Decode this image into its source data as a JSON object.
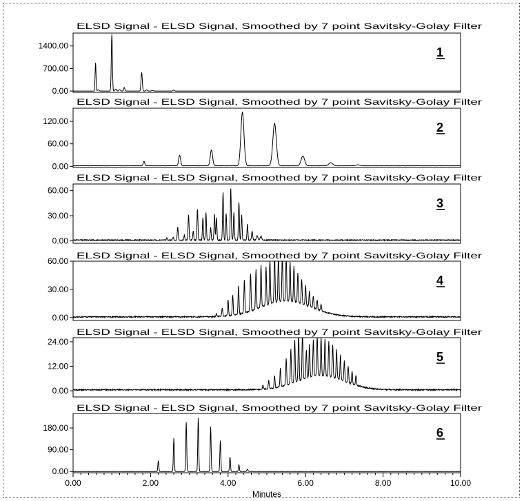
{
  "chart_data": {
    "type": "line",
    "xlabel": "Minutes",
    "xlim": [
      0,
      10
    ],
    "xticks": [
      "0.00",
      "2.00",
      "4.00",
      "6.00",
      "8.00",
      "10.00"
    ],
    "panels": [
      {
        "title": "ELSD Signal - ELSD Signal, Smoothed by 7 point Savitsky-Golay Filter",
        "label": "1",
        "ylim": [
          -40,
          1800
        ],
        "yticks": [
          0,
          700,
          1400
        ],
        "ytick_labels": [
          "0.00",
          "700.00",
          "1400.00"
        ],
        "baseline": 0,
        "noise": 0,
        "peaks": [
          [
            0.58,
            880,
            0.012
          ],
          [
            0.65,
            40,
            0.02
          ],
          [
            1.0,
            1760,
            0.014
          ],
          [
            1.1,
            60,
            0.02
          ],
          [
            1.2,
            45,
            0.02
          ],
          [
            1.32,
            110,
            0.015
          ],
          [
            1.77,
            580,
            0.016
          ],
          [
            1.9,
            35,
            0.02
          ],
          [
            2.05,
            20,
            0.02
          ],
          [
            2.6,
            30,
            0.02
          ]
        ]
      },
      {
        "title": "ELSD Signal - ELSD Signal, Smoothed by 7 point Savitsky-Golay Filter",
        "label": "2",
        "ylim": [
          -3,
          155
        ],
        "yticks": [
          0,
          60,
          120
        ],
        "ytick_labels": [
          "0.00",
          "60.00",
          "120.00"
        ],
        "baseline": 1.5,
        "noise": 0.25,
        "peaks": [
          [
            1.83,
            12,
            0.02
          ],
          [
            2.75,
            28,
            0.025
          ],
          [
            3.57,
            42,
            0.03
          ],
          [
            4.37,
            143,
            0.04
          ],
          [
            5.2,
            113,
            0.045
          ],
          [
            5.93,
            26,
            0.045
          ],
          [
            6.65,
            8,
            0.05
          ],
          [
            7.35,
            2.5,
            0.05
          ]
        ]
      },
      {
        "title": "ELSD Signal - ELSD Signal, Smoothed by 7 point Savitsky-Golay Filter",
        "label": "3",
        "ylim": [
          -3,
          68
        ],
        "yticks": [
          0,
          30,
          60
        ],
        "ytick_labels": [
          "0.00",
          "30.00",
          "60.00"
        ],
        "baseline": 0.8,
        "noise": 0.6,
        "peaks": [
          [
            2.42,
            3,
            0.012
          ],
          [
            2.58,
            4,
            0.012
          ],
          [
            2.7,
            16,
            0.012
          ],
          [
            2.87,
            6,
            0.012
          ],
          [
            2.98,
            31,
            0.012
          ],
          [
            3.1,
            11,
            0.012
          ],
          [
            3.21,
            38,
            0.012
          ],
          [
            3.35,
            27,
            0.012
          ],
          [
            3.43,
            33,
            0.012
          ],
          [
            3.55,
            15,
            0.012
          ],
          [
            3.65,
            31,
            0.012
          ],
          [
            3.7,
            27,
            0.012
          ],
          [
            3.87,
            58,
            0.012
          ],
          [
            3.95,
            32,
            0.012
          ],
          [
            4.07,
            62,
            0.012
          ],
          [
            4.15,
            33,
            0.012
          ],
          [
            4.28,
            46,
            0.012
          ],
          [
            4.35,
            30,
            0.012
          ],
          [
            4.5,
            19,
            0.012
          ],
          [
            4.62,
            10,
            0.015
          ],
          [
            4.75,
            5,
            0.02
          ],
          [
            4.85,
            4,
            0.02
          ]
        ]
      },
      {
        "title": "ELSD Signal - ELSD Signal, Smoothed by 7 point Savitsky-Golay Filter",
        "label": "4",
        "ylim": [
          -3,
          60
        ],
        "yticks": [
          0,
          30,
          60
        ],
        "ytick_labels": [
          "0.00",
          "30.00",
          "60.00"
        ],
        "baseline": 0.8,
        "noise": 0.6,
        "peaks": [
          [
            3.7,
            3,
            0.012
          ],
          [
            3.85,
            9,
            0.012
          ],
          [
            4.0,
            17,
            0.012
          ],
          [
            4.12,
            22,
            0.012
          ],
          [
            4.27,
            30,
            0.012
          ],
          [
            4.42,
            35,
            0.012
          ],
          [
            4.58,
            40,
            0.012
          ],
          [
            4.72,
            42,
            0.012
          ],
          [
            4.85,
            45,
            0.012
          ],
          [
            4.98,
            41,
            0.012
          ],
          [
            5.08,
            48,
            0.012
          ],
          [
            5.2,
            52,
            0.012
          ],
          [
            5.3,
            56,
            0.012
          ],
          [
            5.4,
            50,
            0.012
          ],
          [
            5.5,
            48,
            0.012
          ],
          [
            5.6,
            42,
            0.012
          ],
          [
            5.7,
            38,
            0.012
          ],
          [
            5.8,
            32,
            0.012
          ],
          [
            5.9,
            26,
            0.012
          ],
          [
            6.0,
            21,
            0.012
          ],
          [
            6.1,
            17,
            0.012
          ],
          [
            6.2,
            13,
            0.012
          ],
          [
            6.3,
            10,
            0.012
          ],
          [
            6.4,
            7,
            0.012
          ]
        ],
        "hump": [
          5.5,
          17,
          0.65
        ]
      },
      {
        "title": "ELSD Signal - ELSD Signal, Smoothed by 7 point Savitsky-Golay Filter",
        "label": "5",
        "ylim": [
          -3,
          26
        ],
        "yticks": [
          0,
          12,
          24
        ],
        "ytick_labels": [
          "0.00",
          "12.00",
          "24.00"
        ],
        "baseline": 0.5,
        "noise": 0.3,
        "peaks": [
          [
            4.9,
            2,
            0.012
          ],
          [
            5.05,
            4,
            0.012
          ],
          [
            5.2,
            6,
            0.012
          ],
          [
            5.35,
            9,
            0.012
          ],
          [
            5.5,
            13,
            0.012
          ],
          [
            5.62,
            17,
            0.012
          ],
          [
            5.72,
            21,
            0.012
          ],
          [
            5.82,
            24,
            0.012
          ],
          [
            5.92,
            24,
            0.012
          ],
          [
            6.02,
            14,
            0.012
          ],
          [
            6.1,
            16,
            0.012
          ],
          [
            6.2,
            18,
            0.012
          ],
          [
            6.3,
            20,
            0.012
          ],
          [
            6.4,
            19,
            0.012
          ],
          [
            6.5,
            18,
            0.012
          ],
          [
            6.6,
            17,
            0.012
          ],
          [
            6.7,
            16,
            0.012
          ],
          [
            6.8,
            14,
            0.012
          ],
          [
            6.9,
            12,
            0.012
          ],
          [
            7.0,
            10,
            0.012
          ],
          [
            7.1,
            8,
            0.012
          ],
          [
            7.2,
            6,
            0.012
          ],
          [
            7.3,
            5,
            0.012
          ]
        ],
        "hump": [
          6.4,
          7,
          0.6
        ]
      },
      {
        "title": "ELSD Signal - ELSD Signal, Smoothed by 7 point Savitsky-Golay Filter",
        "label": "6",
        "ylim": [
          -5,
          240
        ],
        "yticks": [
          0,
          90,
          180
        ],
        "ytick_labels": [
          "0.00",
          "90.00",
          "180.00"
        ],
        "baseline": 0,
        "noise": 0.4,
        "peaks": [
          [
            2.2,
            45,
            0.012
          ],
          [
            2.6,
            137,
            0.012
          ],
          [
            2.92,
            205,
            0.012
          ],
          [
            3.23,
            222,
            0.012
          ],
          [
            3.55,
            185,
            0.012
          ],
          [
            3.8,
            128,
            0.012
          ],
          [
            4.05,
            60,
            0.012
          ],
          [
            4.28,
            28,
            0.012
          ],
          [
            4.5,
            10,
            0.015
          ]
        ]
      }
    ]
  }
}
